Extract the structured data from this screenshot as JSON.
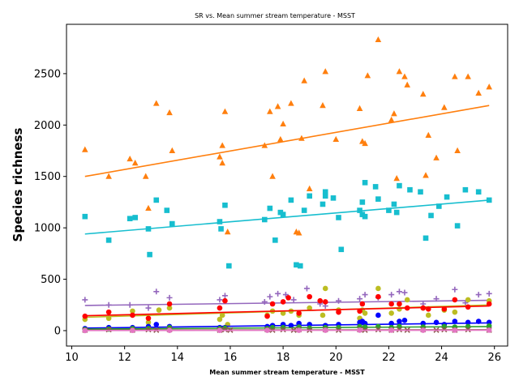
{
  "chart_data": {
    "type": "scatter",
    "title": "SR vs. Mean summer stream temperature - MSST",
    "xlabel": "Mean summer stream temperature - MSST",
    "ylabel": "Species richness",
    "xlim": [
      9.8,
      26.5
    ],
    "ylim": [
      -150,
      2980
    ],
    "xticks": [
      10,
      12,
      14,
      16,
      18,
      20,
      22,
      24,
      26
    ],
    "yticks": [
      0,
      500,
      1000,
      1500,
      2000,
      2500
    ],
    "grid": false,
    "legend": "none",
    "series": [
      {
        "color": "#ff7f0e",
        "marker": "triangle",
        "x": [
          10.5,
          11.4,
          12.2,
          12.4,
          12.8,
          12.9,
          13.2,
          13.7,
          13.8,
          15.6,
          15.7,
          15.7,
          15.8,
          15.9,
          17.3,
          17.5,
          17.6,
          17.8,
          17.9,
          18.0,
          18.3,
          18.5,
          18.6,
          18.7,
          18.8,
          19.0,
          19.5,
          19.6,
          20.0,
          20.9,
          21.0,
          21.1,
          21.2,
          21.6,
          22.1,
          22.2,
          22.3,
          22.4,
          22.6,
          22.7,
          23.3,
          23.4,
          23.5,
          23.8,
          24.1,
          24.5,
          24.6,
          25.0,
          25.4,
          25.8
        ],
        "y": [
          1760,
          1500,
          1670,
          1630,
          1500,
          1190,
          2210,
          2120,
          1750,
          1690,
          1800,
          1630,
          2130,
          960,
          1800,
          2130,
          1500,
          2180,
          1860,
          2010,
          2210,
          960,
          950,
          1870,
          2430,
          1380,
          2190,
          2520,
          1860,
          2160,
          1840,
          1820,
          2480,
          2830,
          2050,
          2110,
          1480,
          2520,
          2470,
          2390,
          2300,
          1510,
          1900,
          1680,
          2170,
          2470,
          1750,
          2470,
          2310,
          2370
        ],
        "trend": [
          [
            10.5,
            1500
          ],
          [
            25.8,
            2190
          ]
        ]
      },
      {
        "color": "#17becf",
        "marker": "square",
        "x": [
          10.5,
          11.4,
          12.2,
          12.4,
          12.9,
          12.95,
          13.2,
          13.6,
          13.8,
          15.6,
          15.65,
          15.8,
          15.95,
          17.3,
          17.5,
          17.7,
          17.9,
          18.0,
          18.3,
          18.5,
          18.65,
          18.8,
          19.0,
          19.5,
          19.6,
          19.6,
          19.9,
          20.1,
          20.2,
          20.9,
          21.0,
          21.0,
          21.1,
          21.1,
          21.5,
          21.6,
          22.0,
          22.2,
          22.3,
          22.4,
          22.8,
          23.2,
          23.4,
          23.6,
          23.9,
          24.2,
          24.6,
          24.9,
          25.4,
          25.8
        ],
        "y": [
          1110,
          880,
          1090,
          1100,
          990,
          740,
          1270,
          1170,
          1040,
          1060,
          990,
          1220,
          630,
          1080,
          1190,
          880,
          1150,
          1130,
          1270,
          640,
          630,
          1170,
          1310,
          1230,
          1310,
          1350,
          1290,
          1100,
          790,
          1170,
          1130,
          1250,
          1440,
          1110,
          1400,
          1280,
          1170,
          1230,
          1150,
          1410,
          1370,
          1350,
          900,
          1120,
          1210,
          1300,
          1020,
          1370,
          1350,
          1270
        ],
        "trend": [
          [
            10.5,
            940
          ],
          [
            25.8,
            1270
          ]
        ]
      },
      {
        "color": "#9467bd",
        "marker": "plus",
        "x": [
          10.5,
          11.4,
          12.2,
          12.9,
          13.2,
          13.7,
          15.6,
          15.8,
          17.3,
          17.5,
          17.8,
          18.1,
          18.4,
          18.9,
          19.4,
          19.6,
          20.1,
          20.9,
          21.1,
          21.6,
          22.1,
          22.4,
          22.6,
          23.3,
          23.8,
          24.5,
          24.9,
          25.4,
          25.8
        ],
        "y": [
          300,
          250,
          250,
          220,
          380,
          320,
          300,
          340,
          280,
          330,
          360,
          350,
          300,
          410,
          260,
          240,
          290,
          310,
          350,
          320,
          350,
          380,
          370,
          260,
          310,
          400,
          270,
          350,
          360
        ],
        "trend": [
          [
            10.5,
            245
          ],
          [
            25.8,
            295
          ]
        ]
      },
      {
        "color": "#bcbd22",
        "marker": "circle",
        "x": [
          10.5,
          11.4,
          12.3,
          12.9,
          13.3,
          13.7,
          15.6,
          15.7,
          15.9,
          17.4,
          17.6,
          18.0,
          18.3,
          18.6,
          19.0,
          19.5,
          19.6,
          20.1,
          20.9,
          21.0,
          21.1,
          21.6,
          22.1,
          22.4,
          22.7,
          23.3,
          23.5,
          24.1,
          24.5,
          25.0,
          25.8
        ],
        "y": [
          110,
          120,
          190,
          80,
          200,
          220,
          110,
          150,
          60,
          150,
          190,
          170,
          190,
          150,
          220,
          150,
          410,
          200,
          120,
          200,
          170,
          410,
          170,
          210,
          300,
          220,
          150,
          200,
          180,
          300,
          290
        ],
        "trend": [
          [
            10.5,
            130
          ],
          [
            25.8,
            250
          ]
        ]
      },
      {
        "color": "#ff0000",
        "marker": "circle",
        "x": [
          10.5,
          11.4,
          12.3,
          12.9,
          13.7,
          15.6,
          15.8,
          17.4,
          17.6,
          18.0,
          18.2,
          18.6,
          19.0,
          19.4,
          19.6,
          20.1,
          20.9,
          21.0,
          21.6,
          22.1,
          22.4,
          22.7,
          23.3,
          23.5,
          24.1,
          24.5,
          25.0,
          25.8
        ],
        "y": [
          140,
          180,
          150,
          120,
          260,
          220,
          290,
          140,
          260,
          280,
          320,
          170,
          330,
          290,
          280,
          180,
          190,
          260,
          330,
          260,
          260,
          220,
          220,
          210,
          210,
          300,
          230,
          260
        ],
        "trend": [
          [
            10.5,
            145
          ],
          [
            25.8,
            240
          ]
        ]
      },
      {
        "color": "#0000ff",
        "marker": "circle",
        "x": [
          10.5,
          11.4,
          12.3,
          12.9,
          13.2,
          13.7,
          15.6,
          15.8,
          17.4,
          17.6,
          18.0,
          18.3,
          18.6,
          19.0,
          19.6,
          20.1,
          20.9,
          21.0,
          21.1,
          21.6,
          22.1,
          22.4,
          22.6,
          23.3,
          23.8,
          24.1,
          24.5,
          25.0,
          25.4,
          25.8
        ],
        "y": [
          20,
          30,
          30,
          40,
          60,
          40,
          30,
          30,
          40,
          50,
          60,
          50,
          70,
          60,
          50,
          60,
          80,
          90,
          70,
          150,
          70,
          90,
          100,
          70,
          80,
          60,
          90,
          80,
          90,
          80
        ],
        "trend": [
          [
            10.5,
            25
          ],
          [
            25.8,
            75
          ]
        ]
      },
      {
        "color": "#2ca02c",
        "marker": "circle",
        "x": [
          10.5,
          11.4,
          12.3,
          12.9,
          13.7,
          15.6,
          15.8,
          17.4,
          17.6,
          18.0,
          18.6,
          19.0,
          19.6,
          20.1,
          20.9,
          21.1,
          21.6,
          22.1,
          22.4,
          23.3,
          24.1,
          24.5,
          25.0,
          25.8
        ],
        "y": [
          10,
          15,
          20,
          20,
          30,
          20,
          25,
          20,
          30,
          30,
          35,
          25,
          30,
          30,
          40,
          35,
          40,
          30,
          40,
          35,
          40,
          35,
          40,
          45
        ],
        "trend": [
          [
            10.5,
            15
          ],
          [
            25.8,
            40
          ]
        ]
      },
      {
        "color": "#8c564b",
        "marker": "x",
        "x": [
          10.5,
          11.4,
          12.3,
          12.9,
          13.2,
          13.7,
          15.6,
          15.8,
          16.0,
          17.4,
          17.6,
          18.0,
          18.4,
          18.6,
          19.0,
          19.6,
          20.1,
          20.9,
          21.1,
          21.6,
          22.1,
          22.4,
          22.7,
          23.3,
          23.8,
          24.1,
          24.5,
          25.0,
          25.8
        ],
        "y": [
          5,
          10,
          5,
          10,
          5,
          10,
          5,
          10,
          5,
          10,
          5,
          10,
          5,
          10,
          5,
          10,
          5,
          10,
          5,
          10,
          5,
          10,
          5,
          10,
          5,
          10,
          5,
          10,
          5
        ],
        "trend": [
          [
            10.5,
            5
          ],
          [
            25.8,
            8
          ]
        ]
      },
      {
        "color": "#e377c2",
        "marker": "circle",
        "x": [
          10.5,
          12.3,
          13.7,
          15.6,
          17.4,
          18.6,
          19.6,
          20.9,
          22.1,
          23.3,
          24.5,
          25.8
        ],
        "y": [
          0,
          2,
          2,
          2,
          3,
          3,
          3,
          4,
          4,
          3,
          4,
          4
        ],
        "trend": [
          [
            10.5,
            1
          ],
          [
            25.8,
            4
          ]
        ]
      }
    ]
  }
}
